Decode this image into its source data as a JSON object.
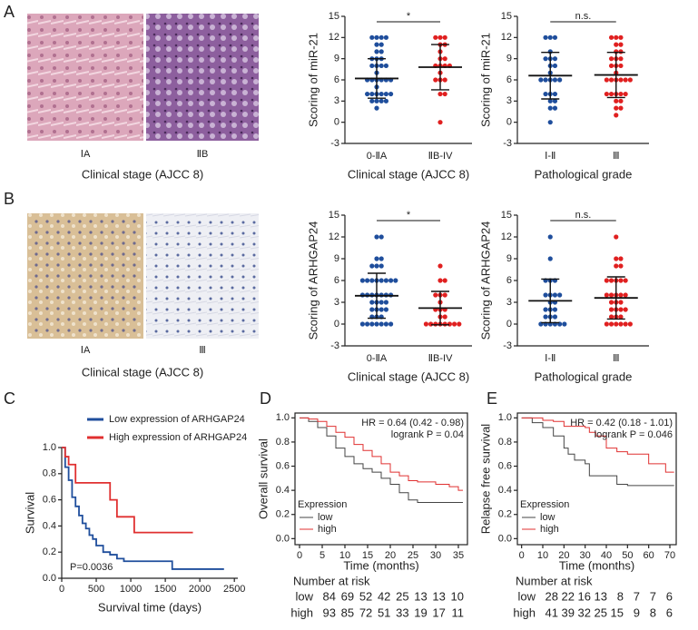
{
  "panel_labels": [
    "A",
    "B",
    "C",
    "D",
    "E"
  ],
  "image_panels": [
    {
      "labels": [
        "ⅠA",
        "ⅡB"
      ],
      "caption": "Clinical stage (AJCC 8)"
    },
    {
      "labels": [
        "ⅠA",
        "Ⅲ"
      ],
      "caption": "Clinical stage (AJCC 8)"
    }
  ],
  "chart_data": [
    {
      "type": "dot",
      "ylabel": "Scoring of miR-21",
      "xlabel": "Clinical stage (AJCC 8)",
      "categories": [
        "0-ⅡA",
        "ⅡB-IV"
      ],
      "significance": "*",
      "ylim": [
        -3,
        15
      ],
      "yticks": [
        -3,
        0,
        3,
        6,
        9,
        12,
        15
      ],
      "groups": [
        {
          "color": "#1f4e9c",
          "values": [
            12,
            12,
            12,
            12,
            11,
            11,
            10,
            10,
            9,
            9,
            9,
            8,
            8,
            8,
            8,
            7,
            6,
            6,
            6,
            6,
            6,
            6,
            5,
            4,
            4,
            4,
            4,
            4,
            4,
            3,
            3,
            3,
            3,
            2
          ],
          "mean": 6.2,
          "sd": 2.8
        },
        {
          "color": "#e02020",
          "values": [
            12,
            12,
            12,
            11,
            11,
            10,
            9,
            9,
            8,
            8,
            8,
            8,
            7,
            6,
            6,
            6,
            4,
            4,
            0
          ],
          "mean": 7.8,
          "sd": 3.2
        }
      ]
    },
    {
      "type": "dot",
      "ylabel": "Scoring of miR-21",
      "xlabel": "Pathological grade",
      "categories": [
        "Ⅰ-Ⅱ",
        "Ⅲ"
      ],
      "significance": "n.s.",
      "ylim": [
        -3,
        15
      ],
      "yticks": [
        -3,
        0,
        3,
        6,
        9,
        12,
        15
      ],
      "groups": [
        {
          "color": "#1f4e9c",
          "values": [
            12,
            12,
            12,
            10,
            9,
            9,
            9,
            8,
            8,
            7,
            6,
            6,
            6,
            6,
            6,
            4,
            4,
            4,
            3,
            3,
            2,
            2,
            0
          ],
          "mean": 6.6,
          "sd": 3.3
        },
        {
          "color": "#e02020",
          "values": [
            12,
            12,
            12,
            11,
            11,
            10,
            10,
            9,
            9,
            9,
            8,
            8,
            8,
            7,
            6,
            6,
            6,
            6,
            6,
            6,
            4,
            4,
            4,
            4,
            4,
            3,
            3,
            2,
            2,
            1
          ],
          "mean": 6.7,
          "sd": 3.2
        }
      ]
    },
    {
      "type": "dot",
      "ylabel": "Scoring of ARHGAP24",
      "xlabel": "Clinical stage (AJCC 8)",
      "categories": [
        "0-ⅡA",
        "ⅡB-IV"
      ],
      "significance": "*",
      "ylim": [
        -3,
        15
      ],
      "yticks": [
        -3,
        0,
        3,
        6,
        9,
        12,
        15
      ],
      "groups": [
        {
          "color": "#1f4e9c",
          "values": [
            12,
            12,
            9,
            9,
            8,
            8,
            8,
            6,
            6,
            6,
            6,
            6,
            6,
            6,
            6,
            4,
            4,
            4,
            4,
            4,
            4,
            4,
            3,
            3,
            3,
            3,
            2,
            2,
            2,
            2,
            1,
            1,
            1,
            0,
            0,
            0,
            0,
            0,
            0,
            0
          ],
          "mean": 3.9,
          "sd": 3.1
        },
        {
          "color": "#e02020",
          "values": [
            8,
            6,
            6,
            4,
            4,
            4,
            3,
            2,
            2,
            2,
            1,
            1,
            0,
            0,
            0,
            0,
            0,
            0,
            0,
            0
          ],
          "mean": 2.2,
          "sd": 2.3
        }
      ]
    },
    {
      "type": "dot",
      "ylabel": "Scoring of ARHGAP24",
      "xlabel": "Pathological grade",
      "categories": [
        "Ⅰ-Ⅱ",
        "Ⅲ"
      ],
      "significance": "n.s.",
      "ylim": [
        -3,
        15
      ],
      "yticks": [
        -3,
        0,
        3,
        6,
        9,
        12,
        15
      ],
      "groups": [
        {
          "color": "#1f4e9c",
          "values": [
            12,
            9,
            6,
            6,
            6,
            4,
            4,
            4,
            4,
            3,
            3,
            2,
            2,
            2,
            1,
            1,
            1,
            0,
            0,
            0,
            0,
            0,
            0
          ],
          "mean": 3.2,
          "sd": 3.0
        },
        {
          "color": "#e02020",
          "values": [
            12,
            9,
            9,
            8,
            8,
            6,
            6,
            6,
            6,
            6,
            4,
            4,
            4,
            4,
            4,
            3,
            3,
            3,
            2,
            2,
            2,
            2,
            1,
            1,
            1,
            0,
            0,
            0,
            0,
            0,
            0
          ],
          "mean": 3.6,
          "sd": 2.9
        }
      ]
    },
    {
      "type": "step",
      "ylabel": "Survival",
      "xlabel": "Survival time (days)",
      "box": false,
      "xlim": [
        0,
        2550
      ],
      "xticks": [
        0,
        500,
        1000,
        1500,
        2000,
        2500
      ],
      "ylim": [
        0,
        1.0
      ],
      "yticks": [
        {
          "value": 0,
          "label": "0.0"
        },
        0.2,
        0.4,
        0.6,
        0.8,
        {
          "value": 1,
          "label": "1.0"
        }
      ],
      "annotations": [
        "P=0.0036"
      ],
      "series": [
        {
          "name": "Low expression of ARHGAP24",
          "color": "#1f4e9c",
          "x": [
            0,
            50,
            100,
            150,
            200,
            250,
            300,
            350,
            400,
            450,
            500,
            600,
            700,
            800,
            900,
            1000,
            1600,
            2350
          ],
          "values": [
            1,
            0.85,
            0.75,
            0.62,
            0.55,
            0.48,
            0.42,
            0.38,
            0.33,
            0.3,
            0.25,
            0.2,
            0.18,
            0.15,
            0.13,
            0.13,
            0.07,
            0.07
          ]
        },
        {
          "name": "High expression of ARHGAP24",
          "color": "#e03030",
          "x": [
            0,
            50,
            100,
            200,
            400,
            700,
            800,
            1050,
            1100,
            1900
          ],
          "values": [
            1,
            0.93,
            0.87,
            0.73,
            0.73,
            0.6,
            0.47,
            0.35,
            0.35,
            0.35
          ]
        }
      ]
    },
    {
      "type": "step",
      "ylabel": "Overall survival",
      "xlabel": "Time (months)",
      "box": true,
      "legend_title": "Expression",
      "xlim": [
        -1,
        37
      ],
      "xticks": [
        0,
        5,
        10,
        15,
        20,
        25,
        30,
        35
      ],
      "ylim": [
        -0.05,
        1.04
      ],
      "yticks": [
        {
          "value": 0,
          "label": "0.0"
        },
        0.2,
        0.4,
        0.6,
        0.8,
        {
          "value": 1,
          "label": "1.0"
        }
      ],
      "annotations": [
        "HR = 0.64 (0.42 - 0.98)",
        "logrank P = 0.04"
      ],
      "series": [
        {
          "name": "low",
          "color": "#444444",
          "x": [
            0,
            2,
            4,
            6,
            8,
            10,
            12,
            14,
            16,
            18,
            20,
            22,
            24,
            26,
            30,
            36
          ],
          "values": [
            1,
            0.97,
            0.92,
            0.85,
            0.75,
            0.68,
            0.62,
            0.58,
            0.55,
            0.5,
            0.45,
            0.38,
            0.32,
            0.3,
            0.3,
            0.3
          ],
          "at_risk": [
            84,
            69,
            52,
            42,
            25,
            13,
            13,
            10
          ]
        },
        {
          "name": "high",
          "color": "#e03030",
          "x": [
            0,
            2,
            4,
            6,
            8,
            10,
            12,
            14,
            16,
            18,
            20,
            22,
            24,
            26,
            28,
            30,
            33,
            35,
            36
          ],
          "values": [
            1,
            0.99,
            0.97,
            0.93,
            0.88,
            0.84,
            0.78,
            0.73,
            0.68,
            0.62,
            0.55,
            0.52,
            0.48,
            0.47,
            0.47,
            0.45,
            0.43,
            0.4,
            0.4
          ],
          "at_risk": [
            93,
            85,
            72,
            51,
            33,
            19,
            17,
            11
          ]
        }
      ],
      "risk_title": "Number at risk"
    },
    {
      "type": "step",
      "ylabel": "Relapse free survival",
      "xlabel": "Time (months)",
      "box": true,
      "legend_title": "Expression",
      "xlim": [
        -2,
        73
      ],
      "xticks": [
        0,
        10,
        20,
        30,
        40,
        50,
        60,
        70
      ],
      "ylim": [
        -0.05,
        1.04
      ],
      "yticks": [
        {
          "value": 0,
          "label": "0.0"
        },
        0.2,
        0.4,
        0.6,
        0.8,
        {
          "value": 1,
          "label": "1.0"
        }
      ],
      "annotations": [
        "HR = 0.42 (0.18 - 1.01)",
        "logrank P = 0.046"
      ],
      "series": [
        {
          "name": "low",
          "color": "#444444",
          "x": [
            0,
            5,
            10,
            15,
            20,
            22,
            25,
            30,
            32,
            35,
            45,
            50,
            72
          ],
          "values": [
            1,
            0.96,
            0.92,
            0.85,
            0.75,
            0.7,
            0.65,
            0.62,
            0.52,
            0.52,
            0.45,
            0.44,
            0.44
          ],
          "at_risk": [
            28,
            22,
            16,
            13,
            8,
            7,
            7,
            6
          ]
        },
        {
          "name": "high",
          "color": "#e03030",
          "x": [
            0,
            10,
            15,
            20,
            25,
            30,
            32,
            35,
            40,
            45,
            50,
            55,
            60,
            65,
            68,
            72
          ],
          "values": [
            1,
            0.98,
            0.97,
            0.93,
            0.93,
            0.92,
            0.88,
            0.85,
            0.75,
            0.72,
            0.7,
            0.7,
            0.62,
            0.62,
            0.55,
            0.55
          ],
          "at_risk": [
            41,
            39,
            32,
            25,
            15,
            9,
            8,
            6
          ]
        }
      ],
      "risk_title": "Number at risk"
    }
  ]
}
